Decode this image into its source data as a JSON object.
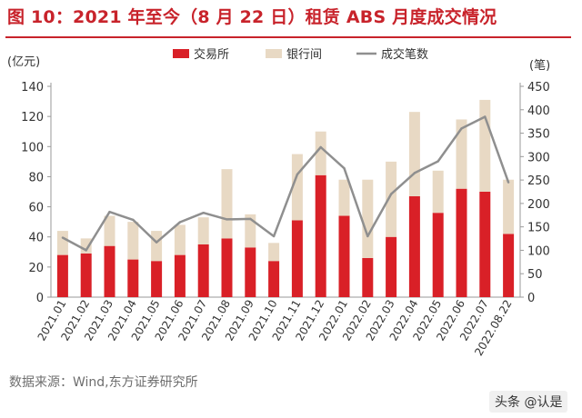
{
  "title": "图 10：2021 年至今（8 月 22 日）租赁 ABS 月度成交情况",
  "source": "数据来源：Wind,东方证券研究所",
  "watermark": "头条 @认是",
  "colors": {
    "title": "#c8232b",
    "exchange_bar": "#d92027",
    "interbank_bar": "#e8d9c4",
    "count_line": "#8f8f8f",
    "axis": "#9a9a9a",
    "text": "#333333"
  },
  "chart_data": {
    "type": "bar",
    "stacked": true,
    "categories": [
      "2021.01",
      "2021.02",
      "2021.03",
      "2021.04",
      "2021.05",
      "2021.06",
      "2021.07",
      "2021.08",
      "2021.09",
      "2021.10",
      "2021.11",
      "2021.12",
      "2022.01",
      "2022.02",
      "2022.03",
      "2022.04",
      "2022.05",
      "2022.06",
      "2022.07",
      "2022.08.22"
    ],
    "series": [
      {
        "name": "交易所",
        "type": "bar",
        "axis": "left",
        "values": [
          28,
          29,
          34,
          25,
          24,
          28,
          35,
          39,
          33,
          24,
          51,
          81,
          54,
          26,
          40,
          67,
          56,
          72,
          70,
          42
        ]
      },
      {
        "name": "银行间",
        "type": "bar",
        "axis": "left",
        "values": [
          16,
          10,
          20,
          25,
          20,
          20,
          18,
          46,
          22,
          12,
          44,
          29,
          24,
          52,
          50,
          56,
          28,
          46,
          61,
          36
        ]
      },
      {
        "name": "成交笔数",
        "type": "line",
        "axis": "right",
        "values": [
          127,
          100,
          182,
          165,
          117,
          160,
          180,
          166,
          167,
          130,
          262,
          320,
          275,
          130,
          220,
          265,
          290,
          360,
          385,
          245
        ]
      }
    ],
    "left_axis": {
      "unit": "(亿元)",
      "ylim": [
        0,
        140
      ],
      "ticks": [
        0,
        20,
        40,
        60,
        80,
        100,
        120,
        140
      ]
    },
    "right_axis": {
      "unit": "(笔)",
      "ylim": [
        0,
        450
      ],
      "ticks": [
        0,
        50,
        100,
        150,
        200,
        250,
        300,
        350,
        400,
        450
      ]
    },
    "legend_position": "top-center",
    "grid": false
  }
}
